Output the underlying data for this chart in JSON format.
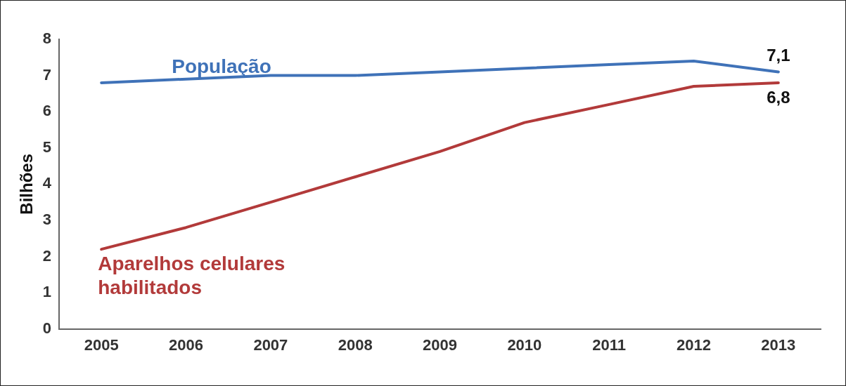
{
  "chart_data": {
    "type": "line",
    "ylabel": "Bilhões",
    "categories": [
      "2005",
      "2006",
      "2007",
      "2008",
      "2009",
      "2010",
      "2011",
      "2012",
      "2013"
    ],
    "ylim": [
      0,
      8
    ],
    "yticks": [
      0,
      1,
      2,
      3,
      4,
      5,
      6,
      7,
      8
    ],
    "grid": false,
    "legend": false,
    "marker": "none",
    "line_style": "solid",
    "series": [
      {
        "name": "População",
        "color": "#3f72b8",
        "values": [
          6.8,
          6.9,
          7.0,
          7.0,
          7.1,
          7.2,
          7.3,
          7.4,
          7.1
        ],
        "value_labels": [
          null,
          null,
          null,
          null,
          null,
          null,
          null,
          null,
          "7,1"
        ]
      },
      {
        "name": "Aparelhos celulares habilitados",
        "color": "#b23a3a",
        "values": [
          2.2,
          2.8,
          3.5,
          4.2,
          4.9,
          5.7,
          6.2,
          6.7,
          6.8
        ],
        "value_labels": [
          null,
          null,
          null,
          null,
          null,
          null,
          null,
          null,
          "6,8"
        ]
      }
    ]
  }
}
